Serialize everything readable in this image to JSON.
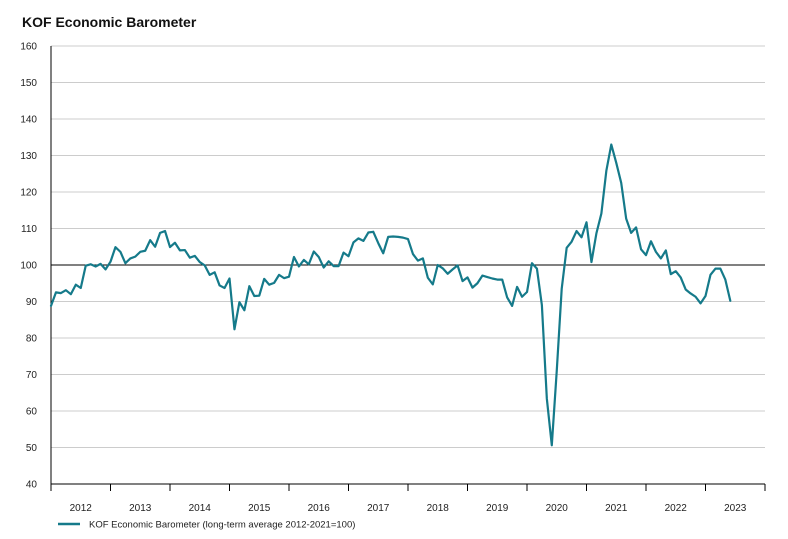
{
  "chart_data": {
    "type": "line",
    "title": "KOF Economic Barometer",
    "xlabel": "",
    "ylabel": "",
    "ylim": [
      40,
      160
    ],
    "yticks": [
      40,
      50,
      60,
      70,
      80,
      90,
      100,
      110,
      120,
      130,
      140,
      150,
      160
    ],
    "xlim": [
      2012.0,
      2024.0
    ],
    "xtick_labels": [
      "2012",
      "2013",
      "2014",
      "2015",
      "2016",
      "2017",
      "2018",
      "2019",
      "2020",
      "2021",
      "2022",
      "2023"
    ],
    "reference_line": 100,
    "grid": true,
    "legend_position": "bottom-left",
    "colors": {
      "series": "#157a8a",
      "grid": "#cccccc",
      "reference": "#000000"
    },
    "series": [
      {
        "name": "KOF Economic Barometer (long-term average 2012-2021=100)",
        "start": "2012-01",
        "frequency": "monthly",
        "values": [
          88.8,
          92.5,
          92.3,
          93.1,
          92.0,
          94.6,
          93.7,
          99.8,
          100.2,
          99.6,
          100.3,
          98.8,
          100.9,
          104.9,
          103.6,
          100.5,
          101.8,
          102.3,
          103.6,
          103.9,
          106.8,
          105.0,
          108.8,
          109.3,
          104.9,
          106.1,
          104.0,
          104.1,
          102.0,
          102.5,
          100.8,
          99.9,
          97.3,
          98.0,
          94.4,
          93.7,
          96.3,
          82.4,
          89.8,
          87.6,
          94.2,
          91.5,
          91.6,
          96.2,
          94.6,
          95.1,
          97.3,
          96.4,
          96.8,
          102.2,
          99.6,
          101.4,
          100.2,
          103.7,
          102.2,
          99.3,
          101.0,
          99.7,
          99.7,
          103.4,
          102.4,
          106.2,
          107.3,
          106.6,
          108.9,
          109.1,
          106.0,
          103.2,
          107.7,
          107.8,
          107.7,
          107.5,
          107.1,
          103.0,
          101.2,
          101.8,
          96.5,
          94.7,
          100.0,
          99.1,
          97.6,
          98.8,
          99.9,
          95.6,
          96.6,
          93.8,
          95.0,
          97.1,
          96.7,
          96.3,
          96.0,
          96.0,
          91.1,
          88.8,
          94.0,
          91.3,
          92.6,
          100.5,
          99.0,
          89.0,
          63.4,
          50.6,
          71.0,
          93.5,
          104.7,
          106.4,
          109.3,
          107.6,
          111.7,
          100.8,
          108.7,
          114.1,
          125.8,
          133.0,
          128.0,
          122.5,
          112.7,
          108.8,
          110.3,
          104.3,
          102.7,
          106.5,
          103.6,
          101.8,
          104.0,
          97.5,
          98.3,
          96.6,
          93.3,
          92.2,
          91.3,
          89.5,
          91.5,
          97.3,
          99.0,
          99.0,
          96.0,
          90.2
        ]
      }
    ]
  }
}
